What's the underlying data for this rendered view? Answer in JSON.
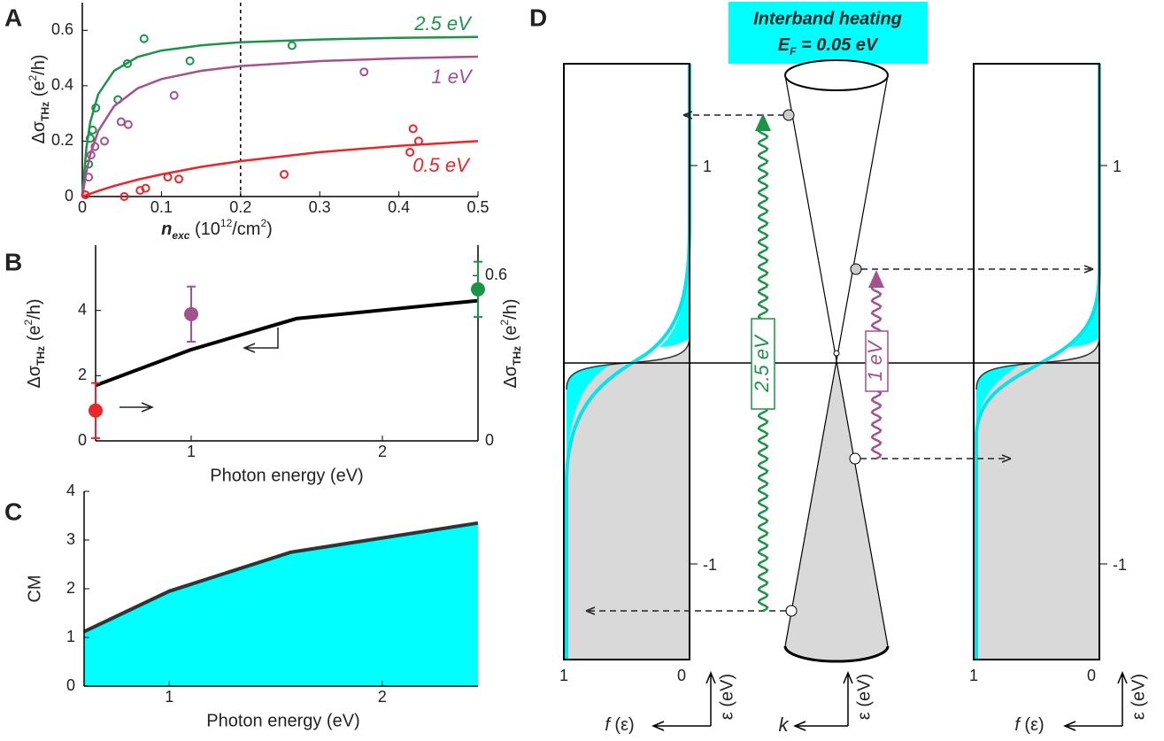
{
  "chart_data": [
    {
      "type": "scatter",
      "panel": "A",
      "xlabel": [
        "n",
        "exc",
        " (10",
        "12",
        "/cm",
        "2",
        ")"
      ],
      "ylabel": [
        "Δσ",
        "THz",
        " (e",
        "2",
        "/h)"
      ],
      "xlim": [
        0,
        0.5
      ],
      "ylim": [
        0,
        0.7
      ],
      "xticks": [
        0,
        0.1,
        0.2,
        0.3,
        0.4,
        0.5
      ],
      "yticks": [
        0,
        0.2,
        0.4,
        0.6
      ],
      "vline": 0.2,
      "fit_x": [
        0,
        0.005,
        0.01,
        0.02,
        0.04,
        0.07,
        0.1,
        0.15,
        0.2,
        0.3,
        0.4,
        0.5
      ],
      "series": [
        {
          "name": "2.5 eV",
          "color": "#1a9447",
          "x": [
            0.008,
            0.01,
            0.013,
            0.017,
            0.045,
            0.057,
            0.078,
            0.136,
            0.265
          ],
          "values": [
            0.117,
            0.21,
            0.24,
            0.32,
            0.35,
            0.48,
            0.57,
            0.49,
            0.545
          ],
          "fit": [
            0,
            0.1735,
            0.268,
            0.369,
            0.454,
            0.504,
            0.527,
            0.546,
            0.557,
            0.567,
            0.573,
            0.576
          ]
        },
        {
          "name": "1 eV",
          "color": "#a5508f",
          "x": [
            0.008,
            0.011,
            0.016,
            0.028,
            0.049,
            0.058,
            0.116,
            0.356
          ],
          "values": [
            0.07,
            0.15,
            0.18,
            0.2,
            0.27,
            0.26,
            0.365,
            0.45
          ],
          "fit": [
            0,
            0.088,
            0.151,
            0.236,
            0.326,
            0.391,
            0.424,
            0.454,
            0.471,
            0.489,
            0.499,
            0.505
          ]
        },
        {
          "name": "0.5 eV",
          "color": "#e8262b",
          "x": [
            0.004,
            0.053,
            0.073,
            0.08,
            0.108,
            0.122,
            0.255,
            0.414,
            0.418,
            0.425
          ],
          "values": [
            0.006,
            0,
            0.022,
            0.03,
            0.07,
            0.063,
            0.08,
            0.16,
            0.245,
            0.2
          ],
          "fit": [
            0,
            0.005,
            0.01,
            0.02,
            0.038,
            0.061,
            0.08,
            0.107,
            0.128,
            0.16,
            0.183,
            0.2
          ]
        }
      ]
    },
    {
      "type": "line",
      "panel": "B",
      "xlabel": "Photon energy (eV)",
      "ylabel": [
        "Δσ",
        "THz",
        " (e",
        "2",
        "/h)"
      ],
      "y2label": [
        "Δσ",
        "THz",
        " (e",
        "2",
        "/h)"
      ],
      "xlim": [
        0.5,
        2.5
      ],
      "xticks": [
        1,
        2
      ],
      "ylim": [
        0,
        6
      ],
      "yticks": [
        0,
        2,
        4
      ],
      "y2lim": [
        0,
        0.71
      ],
      "y2ticks": [
        0,
        0.6
      ],
      "series": [
        {
          "color": "#000000",
          "x": [
            0.5,
            1,
            1.55,
            2.5
          ],
          "values": [
            1.7,
            2.8,
            3.75,
            4.3
          ]
        },
        {
          "axis": "y2",
          "x": [
            0.5,
            1,
            2.5
          ],
          "values": [
            0.11,
            0.46,
            0.55
          ],
          "errors": [
            0.1,
            0.1,
            0.1
          ],
          "colors": [
            "#e8262b",
            "#a5508f",
            "#1a9447"
          ]
        }
      ]
    },
    {
      "type": "area",
      "panel": "C",
      "xlabel": "Photon energy (eV)",
      "ylabel": "CM",
      "xlim": [
        0.6,
        2.45
      ],
      "xticks": [
        1,
        2
      ],
      "ylim": [
        0,
        4
      ],
      "yticks": [
        0,
        1,
        2,
        3,
        4
      ],
      "x": [
        0.6,
        1.0,
        1.57,
        2.45
      ],
      "values": [
        1.12,
        1.95,
        2.75,
        3.35
      ],
      "color": "#00ffff",
      "line_color": "#333333"
    }
  ],
  "panel_d": {
    "panel": "D",
    "title": "Interband heating",
    "fermi": [
      "E",
      "F",
      " = 0.05 eV"
    ],
    "transitions": [
      "2.5 eV",
      "1 eV"
    ],
    "boxes": [
      {
        "e_ticks": [
          1,
          -1
        ],
        "f_ticks": [
          1,
          0
        ],
        "f_label": [
          "f",
          " (ε)"
        ],
        "e_label": "ε (eV)"
      },
      {
        "e_ticks": [
          1,
          -1
        ],
        "f_ticks": [
          1,
          0
        ],
        "f_label": [
          "f",
          " (ε)"
        ],
        "e_label": "ε (eV)"
      }
    ],
    "cone": {
      "k_label": "k",
      "e_label": "ε (eV)"
    }
  }
}
